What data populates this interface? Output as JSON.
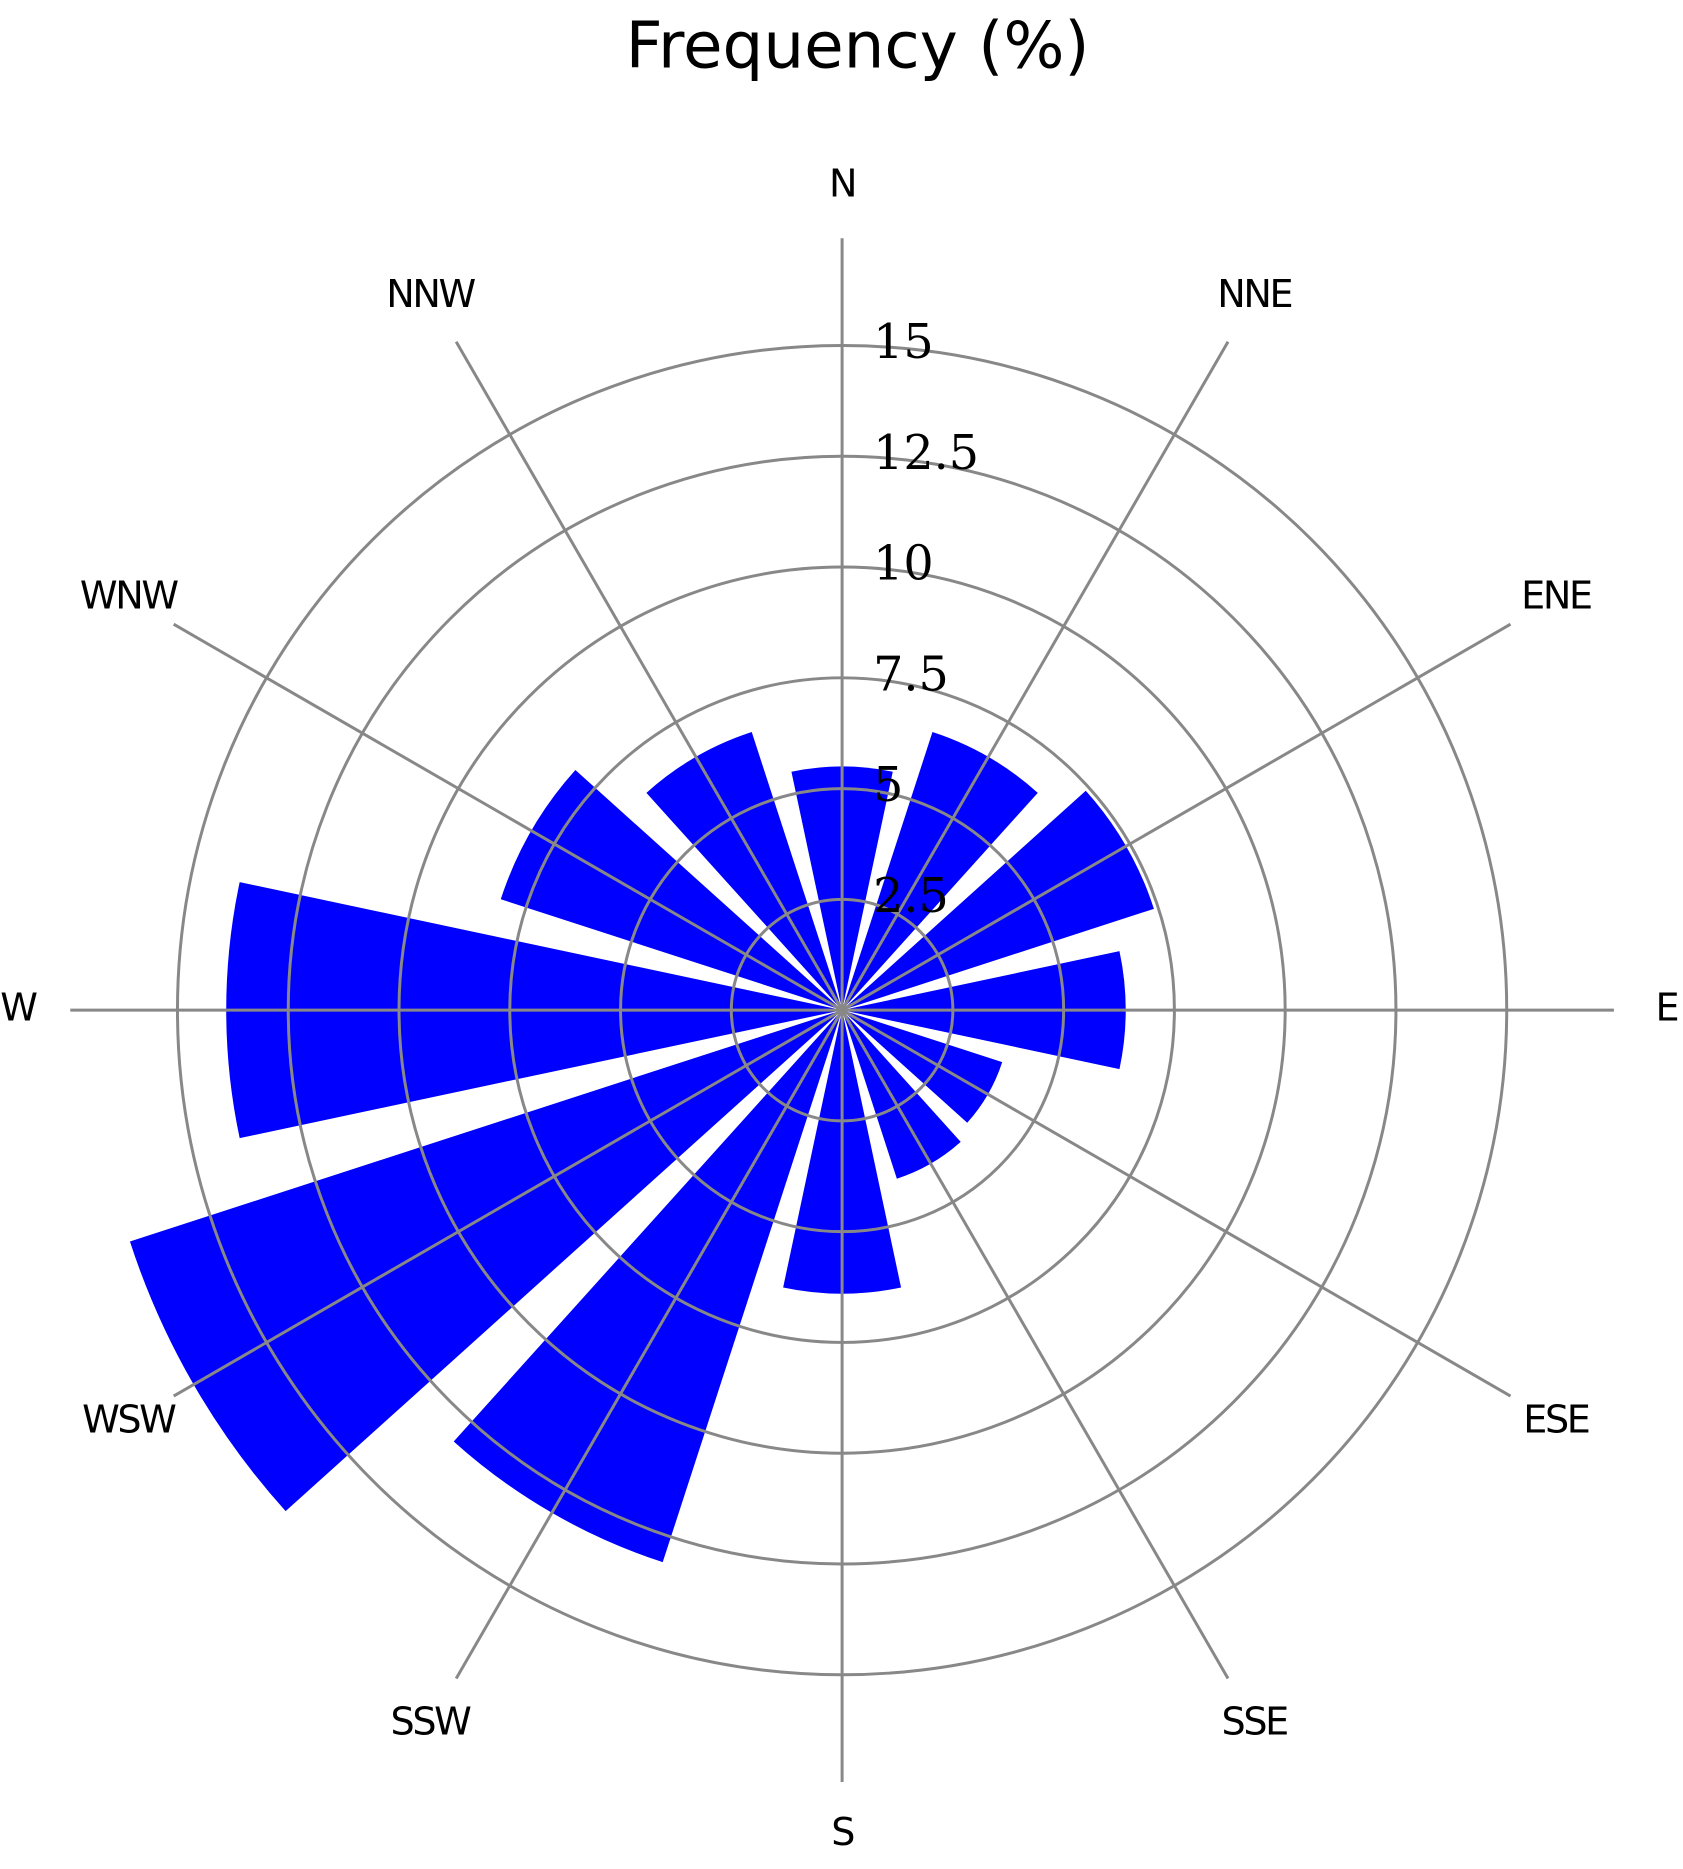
{
  "chart_data": {
    "type": "windrose",
    "title": "Frequency (%)",
    "categories": [
      "N",
      "NNE",
      "ENE",
      "E",
      "ESE",
      "SSE",
      "S",
      "SSW",
      "WSW",
      "W",
      "WNW",
      "NNW"
    ],
    "values": [
      5.5,
      6.6,
      7.4,
      6.4,
      3.8,
      4.0,
      6.4,
      13.1,
      16.9,
      13.9,
      8.1,
      6.6
    ],
    "color": "#0000ff",
    "ylim": [
      0,
      15
    ],
    "yticks": [
      2.5,
      5,
      7.5,
      10,
      12.5,
      15
    ],
    "grid": true
  }
}
